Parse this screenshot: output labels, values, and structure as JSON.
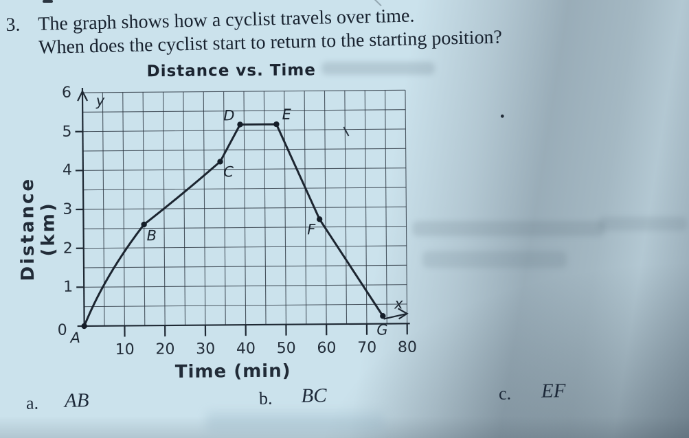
{
  "question": {
    "number": "3.",
    "line1": "The graph shows how a cyclist travels over time.",
    "line2": "When does the cyclist start to return to the starting position?"
  },
  "chart_data": {
    "type": "line",
    "title": "Distance vs. Time",
    "xlabel": "Time (min)",
    "ylabel": "Distance (km)",
    "x_axis_letter": "x",
    "y_axis_letter": "y",
    "xlim": [
      0,
      80
    ],
    "ylim": [
      0,
      6
    ],
    "x_ticks": [
      10,
      20,
      30,
      40,
      50,
      60,
      70,
      80
    ],
    "y_ticks": [
      6,
      5,
      4,
      3,
      2,
      1,
      0
    ],
    "grid": true,
    "grid_cell_x_min": 5,
    "grid_cell_y_km": 0.5,
    "legend": "none",
    "series": [
      {
        "name": "cyclist-distance",
        "points": [
          {
            "label": "A",
            "t": 0,
            "d": 0
          },
          {
            "label": "B",
            "t": 15,
            "d": 2.6
          },
          {
            "label": "C",
            "t": 34,
            "d": 4.2
          },
          {
            "label": "D",
            "t": 39,
            "d": 5.15
          },
          {
            "label": "E",
            "t": 48,
            "d": 5.15
          },
          {
            "label": "F",
            "t": 58.5,
            "d": 2.7
          },
          {
            "label": "G",
            "t": 74,
            "d": 0.2
          }
        ]
      }
    ]
  },
  "options": [
    {
      "key": "a.",
      "value": "AB"
    },
    {
      "key": "b.",
      "value": "BC"
    },
    {
      "key": "c.",
      "value": "EF"
    }
  ],
  "colors": {
    "paper": "#cbe2ec",
    "ink": "#1c2530",
    "shadow": "#7e909e"
  }
}
